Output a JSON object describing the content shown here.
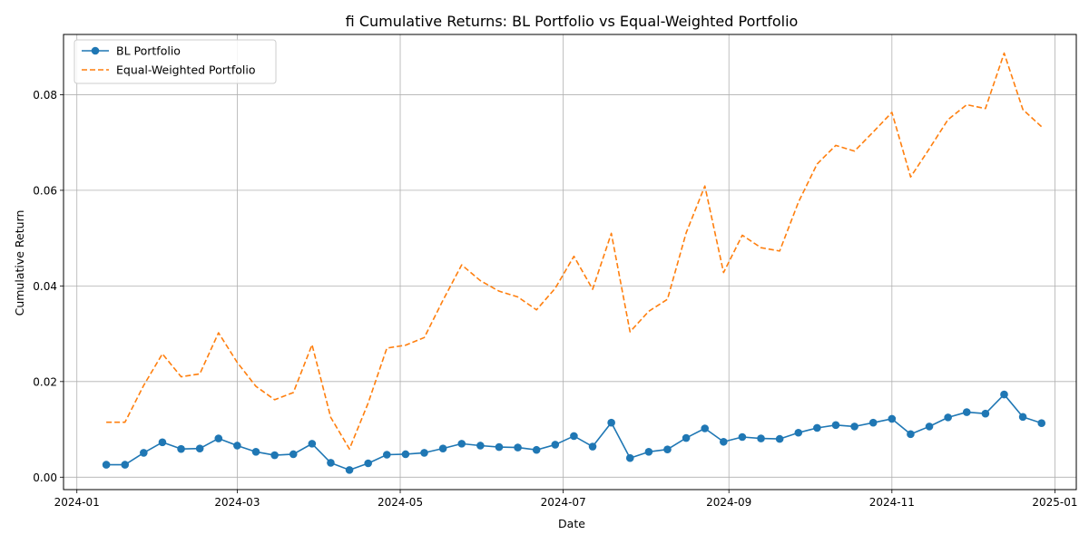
{
  "chart_data": {
    "type": "line",
    "title": "fi Cumulative Returns: BL Portfolio vs Equal-Weighted Portfolio",
    "xlabel": "Date",
    "ylabel": "Cumulative Return",
    "xlim": [
      "2023-12-27",
      "2025-01-09"
    ],
    "ylim": [
      -0.0026,
      0.0926
    ],
    "grid": true,
    "legend_position": "top-left",
    "x_ticks": [
      "2024-01",
      "2024-03",
      "2024-05",
      "2024-07",
      "2024-09",
      "2024-11",
      "2025-01"
    ],
    "x_tick_dates": [
      "2024-01-01",
      "2024-03-01",
      "2024-05-01",
      "2024-07-01",
      "2024-09-01",
      "2024-11-01",
      "2025-01-01"
    ],
    "y_ticks": [
      "0.00",
      "0.02",
      "0.04",
      "0.06",
      "0.08"
    ],
    "y_tick_values": [
      0.0,
      0.02,
      0.04,
      0.06,
      0.08
    ],
    "x": [
      "2024-01-12",
      "2024-01-19",
      "2024-01-26",
      "2024-02-02",
      "2024-02-09",
      "2024-02-16",
      "2024-02-23",
      "2024-03-01",
      "2024-03-08",
      "2024-03-15",
      "2024-03-22",
      "2024-03-29",
      "2024-04-05",
      "2024-04-12",
      "2024-04-19",
      "2024-04-26",
      "2024-05-03",
      "2024-05-10",
      "2024-05-17",
      "2024-05-24",
      "2024-05-31",
      "2024-06-07",
      "2024-06-14",
      "2024-06-21",
      "2024-06-28",
      "2024-07-05",
      "2024-07-12",
      "2024-07-19",
      "2024-07-26",
      "2024-08-02",
      "2024-08-09",
      "2024-08-16",
      "2024-08-23",
      "2024-08-30",
      "2024-09-06",
      "2024-09-13",
      "2024-09-20",
      "2024-09-27",
      "2024-10-04",
      "2024-10-11",
      "2024-10-18",
      "2024-10-25",
      "2024-11-01",
      "2024-11-08",
      "2024-11-15",
      "2024-11-22",
      "2024-11-29",
      "2024-12-06",
      "2024-12-13",
      "2024-12-20",
      "2024-12-27"
    ],
    "series": [
      {
        "name": "BL Portfolio",
        "color": "#1f77b4",
        "style": "solid-with-markers",
        "values": [
          0.0026,
          0.0026,
          0.0051,
          0.0073,
          0.0059,
          0.006,
          0.0081,
          0.0066,
          0.0053,
          0.0046,
          0.0048,
          0.007,
          0.003,
          0.0015,
          0.0029,
          0.0047,
          0.0048,
          0.0051,
          0.006,
          0.007,
          0.0066,
          0.0063,
          0.0062,
          0.0057,
          0.0068,
          0.0086,
          0.0064,
          0.0114,
          0.004,
          0.0053,
          0.0058,
          0.0082,
          0.0102,
          0.0074,
          0.0084,
          0.0081,
          0.008,
          0.0093,
          0.0103,
          0.0109,
          0.0106,
          0.0114,
          0.0122,
          0.009,
          0.0106,
          0.0125,
          0.0136,
          0.0133,
          0.0173,
          0.0126,
          0.0113
        ]
      },
      {
        "name": "Equal-Weighted Portfolio",
        "color": "#ff7f0e",
        "style": "dashed",
        "values": [
          0.0115,
          0.0115,
          0.0192,
          0.0258,
          0.021,
          0.0216,
          0.0302,
          0.024,
          0.019,
          0.0162,
          0.0177,
          0.0277,
          0.0125,
          0.0059,
          0.0155,
          0.027,
          0.0276,
          0.0292,
          0.037,
          0.0444,
          0.0411,
          0.0389,
          0.0377,
          0.035,
          0.0395,
          0.0462,
          0.0393,
          0.051,
          0.0304,
          0.0347,
          0.0372,
          0.0511,
          0.0609,
          0.0428,
          0.0506,
          0.048,
          0.0473,
          0.0575,
          0.0655,
          0.0694,
          0.0682,
          0.0722,
          0.0763,
          0.0628,
          0.0687,
          0.0748,
          0.0779,
          0.0771,
          0.0887,
          0.0769,
          0.0733
        ]
      }
    ]
  }
}
